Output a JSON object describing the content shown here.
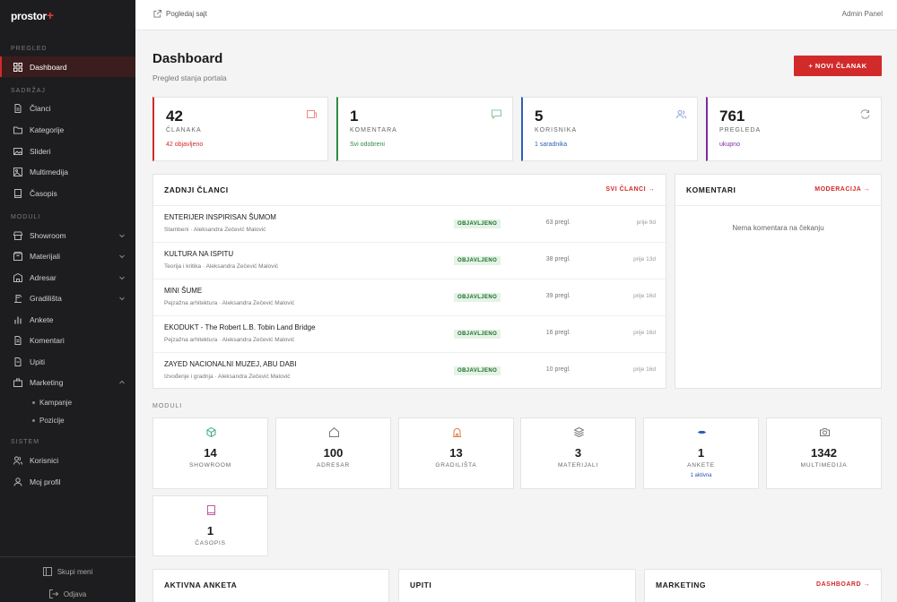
{
  "brand": {
    "logo": "prostor",
    "plus": "+"
  },
  "topbar": {
    "view_site": "Pogledaj sajt",
    "admin": "Admin Panel"
  },
  "sidebar": {
    "groups": {
      "pregled": "PREGLED",
      "sadrzaj": "SADRŽAJ",
      "moduli": "MODULI",
      "sistem": "SISTEM"
    },
    "items": {
      "dashboard": "Dashboard",
      "clanci": "Članci",
      "kategorije": "Kategorije",
      "slideri": "Slideri",
      "multimedija": "Multimedija",
      "casopis": "Časopis",
      "showroom": "Showroom",
      "materijali": "Materijali",
      "adresar": "Adresar",
      "gradilista": "Gradilišta",
      "ankete": "Ankete",
      "komentari": "Komentari",
      "upiti": "Upiti",
      "marketing": "Marketing",
      "kampanje": "Kampanje",
      "pozicije": "Pozicije",
      "korisnici": "Korisnici",
      "profil": "Moj profil"
    },
    "collapse": "Skupi meni",
    "logout": "Odjava"
  },
  "header": {
    "title": "Dashboard",
    "subtitle": "Pregled stanja portala",
    "new_button": "+ NOVI ČLANAK"
  },
  "stats": [
    {
      "value": "42",
      "label": "ČLANAKA",
      "sub": "42 objavljeno",
      "color": "#d22a2a"
    },
    {
      "value": "1",
      "label": "KOMENTARA",
      "sub": "Svi odobreni",
      "color": "#2e8b3e"
    },
    {
      "value": "5",
      "label": "KORISNIKA",
      "sub": "1 saradnika",
      "color": "#2f5fb8"
    },
    {
      "value": "761",
      "label": "PREGLEDA",
      "sub": "ukupno",
      "color": "#7b2ca0"
    }
  ],
  "latest": {
    "title": "ZADNJI ČLANCI",
    "link": "SVI ČLANCI →",
    "rows": [
      {
        "title": "ENTERIJER INSPIRISAN ŠUMOM",
        "meta": "Stambeni · Aleksandra Zečević Malović",
        "status": "OBJAVLJENO",
        "views": "63 pregl.",
        "date": "prije 9d"
      },
      {
        "title": "KULTURA NA ISPITU",
        "meta": "Teorija i kritika · Aleksandra Zečević Malović",
        "status": "OBJAVLJENO",
        "views": "38 pregl.",
        "date": "prije 13d"
      },
      {
        "title": "MINI ŠUME",
        "meta": "Pejzažna arhitektura · Aleksandra Zečević Malović",
        "status": "OBJAVLJENO",
        "views": "39 pregl.",
        "date": "prije 16d"
      },
      {
        "title": "EKODUKT - The Robert L.B. Tobin Land Bridge",
        "meta": "Pejzažna arhitektura · Aleksandra Zečević Malović",
        "status": "OBJAVLJENO",
        "views": "16 pregl.",
        "date": "prije 16d"
      },
      {
        "title": "ZAYED NACIONALNI MUZEJ, ABU DABI",
        "meta": "Izvođenje i gradnja · Aleksandra Zečević Malović",
        "status": "OBJAVLJENO",
        "views": "10 pregl.",
        "date": "prije 16d"
      }
    ]
  },
  "comments": {
    "title": "KOMENTARI",
    "link": "MODERACIJA →",
    "empty": "Nema komentara na čekanju"
  },
  "modules": {
    "label": "MODULI",
    "items": [
      {
        "value": "14",
        "label": "SHOWROOM",
        "icon": "cube-icon"
      },
      {
        "value": "100",
        "label": "ADRESAR",
        "icon": "home-icon"
      },
      {
        "value": "13",
        "label": "GRADILIŠTA",
        "icon": "building-icon"
      },
      {
        "value": "3",
        "label": "MATERIJALI",
        "icon": "layers-icon"
      },
      {
        "value": "1",
        "label": "ANKETE",
        "sub": "1 aktivna",
        "icon": "poll-icon"
      },
      {
        "value": "1342",
        "label": "MULTIMEDIJA",
        "icon": "camera-icon"
      },
      {
        "value": "1",
        "label": "ČASOPIS",
        "icon": "book-icon"
      }
    ]
  },
  "bottom": {
    "poll": "AKTIVNA ANKETA",
    "inquiries": "UPITI",
    "marketing": "MARKETING",
    "marketing_link": "DASHBOARD →"
  }
}
